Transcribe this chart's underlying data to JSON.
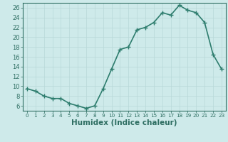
{
  "x": [
    0,
    1,
    2,
    3,
    4,
    5,
    6,
    7,
    8,
    9,
    10,
    11,
    12,
    13,
    14,
    15,
    16,
    17,
    18,
    19,
    20,
    21,
    22,
    23
  ],
  "y": [
    9.5,
    9.0,
    8.0,
    7.5,
    7.5,
    6.5,
    6.0,
    5.5,
    6.0,
    9.5,
    13.5,
    17.5,
    18.0,
    21.5,
    22.0,
    23.0,
    25.0,
    24.5,
    26.5,
    25.5,
    25.0,
    23.0,
    16.5,
    13.5
  ],
  "line_color": "#2e7d6e",
  "marker": "+",
  "marker_size": 4,
  "bg_color": "#ceeaea",
  "grid_color": "#b8d8d8",
  "tick_color": "#2e6e62",
  "spine_color": "#2e6e62",
  "xlabel": "Humidex (Indice chaleur)",
  "xlim": [
    -0.5,
    23.5
  ],
  "ylim": [
    5,
    27
  ],
  "yticks": [
    6,
    8,
    10,
    12,
    14,
    16,
    18,
    20,
    22,
    24,
    26
  ],
  "xticks": [
    0,
    1,
    2,
    3,
    4,
    5,
    6,
    7,
    8,
    9,
    10,
    11,
    12,
    13,
    14,
    15,
    16,
    17,
    18,
    19,
    20,
    21,
    22,
    23
  ],
  "tick_fontsize": 6.0,
  "xlabel_fontsize": 7.5,
  "linewidth": 1.2,
  "marker_color": "#2e7d6e"
}
